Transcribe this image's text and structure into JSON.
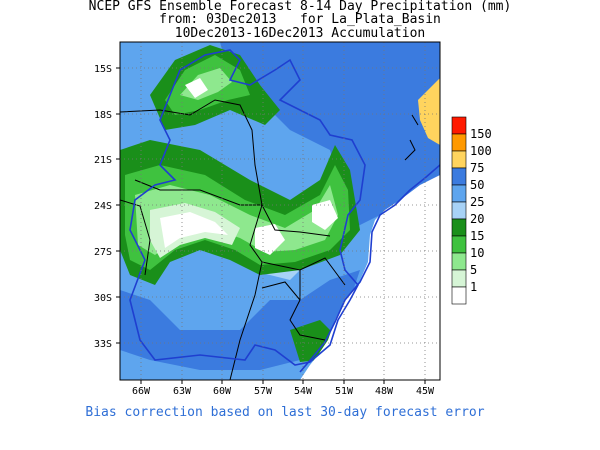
{
  "header": {
    "line1": "NCEP GFS Ensemble Forecast 8-14 Day Precipitation (mm)",
    "line2": "from: 03Dec2013   for La_Plata_Basin",
    "line3": "10Dec2013-16Dec2013 Accumulation"
  },
  "axes": {
    "lat_labels": [
      "15S",
      "18S",
      "21S",
      "24S",
      "27S",
      "30S",
      "33S"
    ],
    "lon_labels": [
      "66W",
      "63W",
      "60W",
      "57W",
      "54W",
      "51W",
      "48W",
      "45W"
    ]
  },
  "legend": {
    "items": [
      {
        "label": "150",
        "color": "#ff1a00"
      },
      {
        "label": "100",
        "color": "#ff9900"
      },
      {
        "label": "75",
        "color": "#ffd45e"
      },
      {
        "label": "50",
        "color": "#3b7bdf"
      },
      {
        "label": "25",
        "color": "#5ea5ee"
      },
      {
        "label": "20",
        "color": "#a7d2f6"
      },
      {
        "label": "15",
        "color": "#1a8f1a"
      },
      {
        "label": "10",
        "color": "#3fc23f"
      },
      {
        "label": "5",
        "color": "#8ee88e"
      },
      {
        "label": "1",
        "color": "#d6f5d6"
      },
      {
        "label": "",
        "color": "#ffffff"
      }
    ]
  },
  "footer": "Bias correction based on last 30-day forecast error"
}
